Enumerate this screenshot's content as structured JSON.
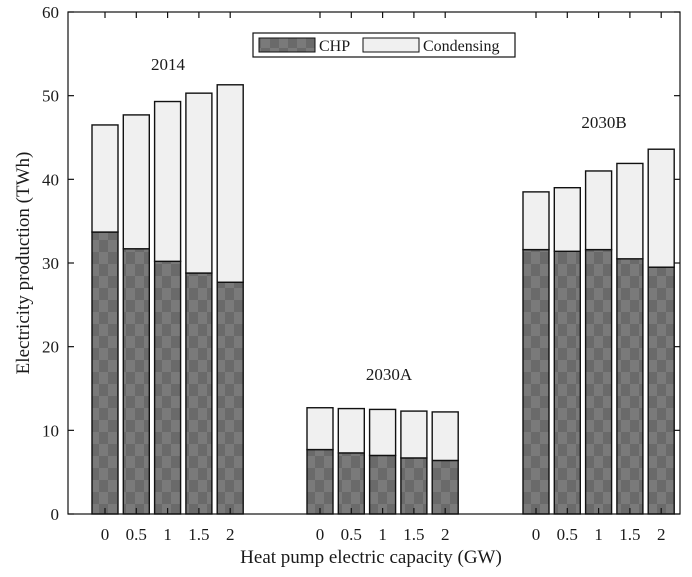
{
  "chart_data": {
    "type": "bar",
    "stacked": true,
    "xlabel": "Heat pump electric capacity (GW)",
    "ylabel": "Electricity production (TWh)",
    "ylim": [
      0,
      60
    ],
    "yticks": [
      0,
      10,
      20,
      30,
      40,
      50,
      60
    ],
    "grid": false,
    "legend": {
      "placement": "top-center",
      "entries": [
        {
          "name": "CHP",
          "color": "#6e6e6e"
        },
        {
          "name": "Condensing",
          "color": "#f0f0f0"
        }
      ]
    },
    "groups": [
      {
        "label": "2014",
        "categories": [
          "0",
          "0.5",
          "1",
          "1.5",
          "2"
        ],
        "series": [
          {
            "name": "CHP",
            "values": [
              33.7,
              31.7,
              30.2,
              28.8,
              27.7
            ]
          },
          {
            "name": "Condensing",
            "values": [
              12.8,
              16.0,
              19.1,
              21.5,
              23.6
            ]
          }
        ]
      },
      {
        "label": "2030A",
        "categories": [
          "0",
          "0.5",
          "1",
          "1.5",
          "2"
        ],
        "series": [
          {
            "name": "CHP",
            "values": [
              7.7,
              7.3,
              7.0,
              6.7,
              6.4
            ]
          },
          {
            "name": "Condensing",
            "values": [
              5.0,
              5.3,
              5.5,
              5.6,
              5.8
            ]
          }
        ]
      },
      {
        "label": "2030B",
        "categories": [
          "0",
          "0.5",
          "1",
          "1.5",
          "2"
        ],
        "series": [
          {
            "name": "CHP",
            "values": [
              31.6,
              31.4,
              31.6,
              30.5,
              29.5
            ]
          },
          {
            "name": "Condensing",
            "values": [
              6.9,
              7.6,
              9.4,
              11.4,
              14.1
            ]
          }
        ]
      }
    ]
  }
}
